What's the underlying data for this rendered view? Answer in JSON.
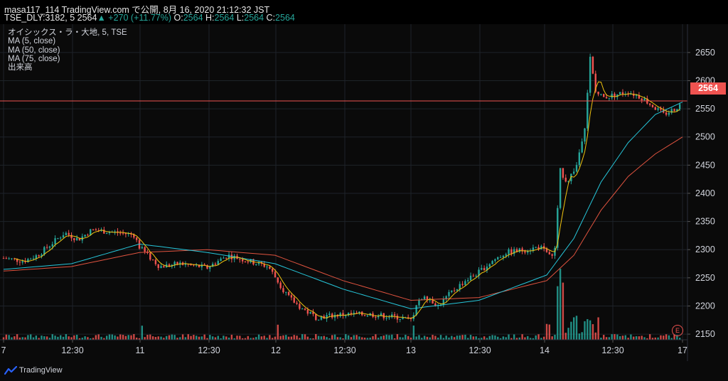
{
  "header": {
    "line1": "masa117_114 TradingView.com で公開, 8月 16, 2020 21:12:32 JST",
    "symbol": "TSE_DLY:3182, 5",
    "last": "2564",
    "arrow": "▲",
    "change": "+270 (+11.77%)",
    "o_label": "O:",
    "o_value": "2564",
    "h_label": "H:",
    "h_value": "2564",
    "l_label": "L:",
    "l_value": "2564",
    "c_label": "C:",
    "c_value": "2564"
  },
  "legend": {
    "title": "オイシックス・ラ・大地, 5, TSE",
    "ma5": "MA (5, close)",
    "ma50": "MA (50, close)",
    "ma75": "MA (75, close)",
    "volume": "出来高"
  },
  "price_badge": "2564",
  "earnings_badge": "E",
  "footer": {
    "brand": "TradingView"
  },
  "colors": {
    "up": "#26a69a",
    "down": "#ef5350",
    "ma5": "#f0c30f",
    "ma50": "#26c6da",
    "ma75": "#e0533f",
    "background": "#0a0a0a",
    "grid": "#1e2329"
  },
  "chart_data": {
    "type": "line",
    "x_ticks": [
      "7",
      "12:30",
      "11",
      "12:30",
      "12",
      "12:30",
      "13",
      "12:30",
      "14",
      "12:30",
      "17"
    ],
    "y_ticks": [
      2150,
      2200,
      2250,
      2300,
      2350,
      2400,
      2450,
      2500,
      2550,
      2600,
      2650
    ],
    "ylim": [
      2140,
      2670
    ],
    "last_price": 2564,
    "price_path": [
      [
        0,
        2285
      ],
      [
        1.5,
        2280
      ],
      [
        2.5,
        2290
      ],
      [
        4.5,
        2330
      ],
      [
        5.5,
        2318
      ],
      [
        6.5,
        2335
      ],
      [
        8.5,
        2330
      ],
      [
        9.6,
        2326
      ],
      [
        10,
        2305
      ],
      [
        10.6,
        2290
      ],
      [
        11.5,
        2270
      ],
      [
        13,
        2275
      ],
      [
        15,
        2268
      ],
      [
        16.5,
        2290
      ],
      [
        18,
        2280
      ],
      [
        19.5,
        2270
      ],
      [
        20.3,
        2240
      ],
      [
        21,
        2215
      ],
      [
        22,
        2195
      ],
      [
        23,
        2180
      ],
      [
        25,
        2185
      ],
      [
        27,
        2185
      ],
      [
        29,
        2180
      ],
      [
        30,
        2175
      ],
      [
        30.4,
        2200
      ],
      [
        31,
        2220
      ],
      [
        32,
        2200
      ],
      [
        33,
        2225
      ],
      [
        34,
        2245
      ],
      [
        35,
        2260
      ],
      [
        36,
        2280
      ],
      [
        37,
        2295
      ],
      [
        38.5,
        2300
      ],
      [
        39.5,
        2305
      ],
      [
        40.2,
        2288
      ],
      [
        40.6,
        2300
      ],
      [
        41,
        2440
      ],
      [
        41.5,
        2420
      ],
      [
        42.2,
        2450
      ],
      [
        42.8,
        2520
      ],
      [
        43.2,
        2640
      ],
      [
        43.6,
        2580
      ],
      [
        44.2,
        2570
      ],
      [
        45,
        2575
      ],
      [
        46,
        2580
      ],
      [
        47,
        2570
      ],
      [
        47.8,
        2555
      ],
      [
        48.6,
        2540
      ],
      [
        49.3,
        2548
      ],
      [
        50,
        2560
      ]
    ],
    "ma50_path": [
      [
        0,
        2265
      ],
      [
        5,
        2275
      ],
      [
        10,
        2310
      ],
      [
        15,
        2295
      ],
      [
        20,
        2275
      ],
      [
        25,
        2230
      ],
      [
        30,
        2195
      ],
      [
        35,
        2210
      ],
      [
        40,
        2255
      ],
      [
        42,
        2320
      ],
      [
        44,
        2420
      ],
      [
        46,
        2490
      ],
      [
        48,
        2540
      ],
      [
        50,
        2562
      ]
    ],
    "ma75_path": [
      [
        0,
        2262
      ],
      [
        5,
        2270
      ],
      [
        10,
        2295
      ],
      [
        15,
        2300
      ],
      [
        20,
        2290
      ],
      [
        25,
        2245
      ],
      [
        30,
        2210
      ],
      [
        35,
        2215
      ],
      [
        40,
        2245
      ],
      [
        42,
        2290
      ],
      [
        44,
        2370
      ],
      [
        46,
        2430
      ],
      [
        48,
        2470
      ],
      [
        50,
        2500
      ]
    ],
    "volume_spike_days": [
      "11",
      "12",
      "14"
    ]
  }
}
